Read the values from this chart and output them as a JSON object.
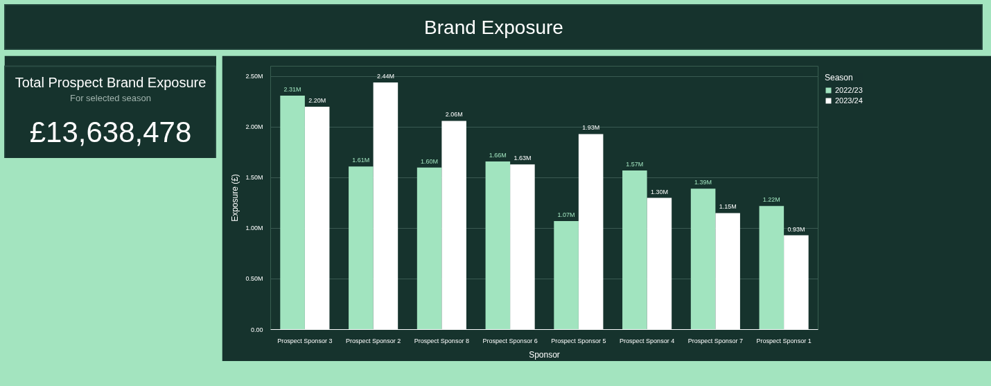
{
  "chart_data": [
    {
      "type": "other",
      "title": "Brand Exposure"
    },
    {
      "type": "other",
      "title": "Total Prospect Brand Exposure",
      "subtitle": "For selected season",
      "annotations": [
        "£13,638,478"
      ]
    },
    {
      "type": "bar",
      "xlabel": "Sponsor",
      "ylabel": "Exposure (£)",
      "legend_title": "Season",
      "legend": "top right",
      "grid": "y",
      "data_labels": true,
      "categories": [
        "Prospect Sponsor 3",
        "Prospect Sponsor 2",
        "Prospect Sponsor 8",
        "Prospect Sponsor 6",
        "Prospect Sponsor 5",
        "Prospect Sponsor 4",
        "Prospect Sponsor 7",
        "Prospect Sponsor 1"
      ],
      "ylim": [
        0,
        2600000
      ],
      "yticks": [
        {
          "value": 0,
          "label": "0.00"
        },
        {
          "value": 500000,
          "label": "0.50M"
        },
        {
          "value": 1000000,
          "label": "1.00M"
        },
        {
          "value": 1500000,
          "label": "1.50M"
        },
        {
          "value": 2000000,
          "label": "2.00M"
        },
        {
          "value": 2500000,
          "label": "2.50M"
        }
      ],
      "series": [
        {
          "name": "2022/23",
          "color": "#a1e4bf",
          "values": [
            2310000,
            1610000,
            1600000,
            1660000,
            1070000,
            1570000,
            1390000,
            1220000
          ],
          "value_labels": [
            "2.31M",
            "1.61M",
            "1.60M",
            "1.66M",
            "1.07M",
            "1.57M",
            "1.39M",
            "1.22M"
          ]
        },
        {
          "name": "2023/24",
          "color": "#ffffff",
          "values": [
            2200000,
            2440000,
            2060000,
            1630000,
            1930000,
            1300000,
            1150000,
            930000
          ],
          "value_labels": [
            "2.20M",
            "2.44M",
            "2.06M",
            "1.63M",
            "1.93M",
            "1.30M",
            "1.15M",
            "0.93M"
          ]
        }
      ]
    }
  ]
}
